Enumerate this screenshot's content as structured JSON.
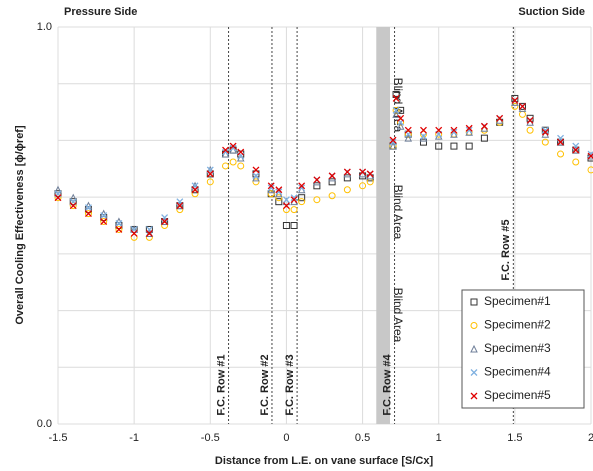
{
  "chart_data": {
    "type": "scatter",
    "left_title": "Pressure Side",
    "right_title": "Suction Side",
    "x_label": "Distance from L.E. on vane surface [S/Cx]",
    "y_label": "Overall Cooling Effectiveness [ϕ/ϕref]",
    "xlim": [
      -1.5,
      2
    ],
    "xticks": [
      -1.5,
      -1,
      -0.5,
      0,
      0.5,
      1,
      1.5,
      2
    ],
    "ylim": [
      0,
      1
    ],
    "yticks": [
      {
        "value": 0,
        "label": "0.0"
      },
      {
        "value": 1,
        "label": "1.0"
      }
    ],
    "ygrid": [
      0.1429,
      0.2857,
      0.4286,
      0.5714,
      0.7143,
      0.8571
    ],
    "grid": true,
    "legend": "lower right",
    "vlines": [
      {
        "label": "F.C. Row #1",
        "x": -0.38
      },
      {
        "label": "F.C. Row #2",
        "x": -0.095
      },
      {
        "label": "F.C. Row #3",
        "x": 0.07
      },
      {
        "label": "F.C. Row #4",
        "x": 0.71
      },
      {
        "label": "F.C. Row #5",
        "x": 1.49
      }
    ],
    "band": {
      "label": "Blind Area",
      "xlim": [
        0.59,
        0.68
      ],
      "color": "#c8c8c8"
    },
    "x": [
      -1.5,
      -1.4,
      -1.3,
      -1.2,
      -1.1,
      -1.0,
      -0.9,
      -0.8,
      -0.7,
      -0.6,
      -0.5,
      -0.4,
      -0.35,
      -0.3,
      -0.2,
      -0.1,
      -0.05,
      0,
      0.05,
      0.1,
      0.2,
      0.3,
      0.4,
      0.5,
      0.55,
      0.6,
      0.7,
      0.72,
      0.75,
      0.8,
      0.9,
      1.0,
      1.1,
      1.2,
      1.3,
      1.4,
      1.5,
      1.55,
      1.6,
      1.7,
      1.8,
      1.9,
      2.0
    ],
    "series": [
      {
        "name": "Specimen#1",
        "color": "#333333",
        "marker": "square",
        "values": [
          0.58,
          0.56,
          0.54,
          0.52,
          0.5,
          0.49,
          0.49,
          0.51,
          0.55,
          0.59,
          0.63,
          0.68,
          0.69,
          0.68,
          0.63,
          0.58,
          0.56,
          0.5,
          0.5,
          0.57,
          0.6,
          0.61,
          0.62,
          0.625,
          0.62,
          null,
          0.7,
          0.83,
          0.79,
          0.73,
          0.71,
          0.7,
          0.7,
          0.7,
          0.72,
          0.76,
          0.82,
          0.8,
          0.77,
          0.74,
          0.71,
          0.69,
          0.67
        ]
      },
      {
        "name": "Specimen#2",
        "color": "#ffc000",
        "marker": "circle",
        "values": [
          0.57,
          0.55,
          0.53,
          0.51,
          0.49,
          0.47,
          0.47,
          0.5,
          0.54,
          0.58,
          0.61,
          0.65,
          0.66,
          0.65,
          0.61,
          0.58,
          0.57,
          0.54,
          0.54,
          0.56,
          0.565,
          0.575,
          0.59,
          0.6,
          0.61,
          null,
          0.7,
          0.79,
          0.76,
          0.73,
          0.73,
          0.73,
          0.73,
          0.735,
          0.74,
          0.76,
          0.8,
          0.78,
          0.74,
          0.71,
          0.68,
          0.66,
          0.64
        ]
      },
      {
        "name": "Specimen#3",
        "color": "#6f7f99",
        "marker": "triangle",
        "values": [
          0.59,
          0.57,
          0.55,
          0.53,
          0.51,
          0.49,
          0.48,
          0.51,
          0.55,
          0.6,
          0.64,
          0.68,
          0.69,
          0.67,
          0.62,
          0.59,
          0.58,
          0.56,
          0.56,
          0.59,
          0.61,
          0.62,
          0.63,
          0.63,
          0.625,
          null,
          0.7,
          0.78,
          0.75,
          0.72,
          0.72,
          0.725,
          0.73,
          0.735,
          0.745,
          0.765,
          0.81,
          0.795,
          0.76,
          0.73,
          0.71,
          0.69,
          0.675
        ]
      },
      {
        "name": "Specimen#4",
        "color": "#7fb0e0",
        "marker": "x",
        "values": [
          0.58,
          0.56,
          0.545,
          0.525,
          0.505,
          0.49,
          0.49,
          0.52,
          0.56,
          0.6,
          0.64,
          0.685,
          0.695,
          0.675,
          0.625,
          0.595,
          0.585,
          0.565,
          0.57,
          0.595,
          0.615,
          0.625,
          0.635,
          0.635,
          0.63,
          null,
          0.71,
          0.79,
          0.76,
          0.73,
          0.725,
          0.73,
          0.735,
          0.74,
          0.75,
          0.77,
          0.815,
          0.8,
          0.765,
          0.74,
          0.72,
          0.7,
          0.68
        ]
      },
      {
        "name": "Specimen#5",
        "color": "#e00000",
        "marker": "x",
        "values": [
          0.57,
          0.55,
          0.53,
          0.51,
          0.49,
          0.48,
          0.48,
          0.51,
          0.55,
          0.59,
          0.63,
          0.69,
          0.7,
          0.685,
          0.64,
          0.6,
          0.59,
          0.55,
          0.565,
          0.6,
          0.615,
          0.625,
          0.635,
          0.635,
          0.63,
          null,
          0.715,
          0.82,
          0.77,
          0.74,
          0.74,
          0.74,
          0.74,
          0.745,
          0.75,
          0.77,
          0.815,
          0.8,
          0.765,
          0.735,
          0.71,
          0.69,
          0.675
        ]
      }
    ]
  }
}
